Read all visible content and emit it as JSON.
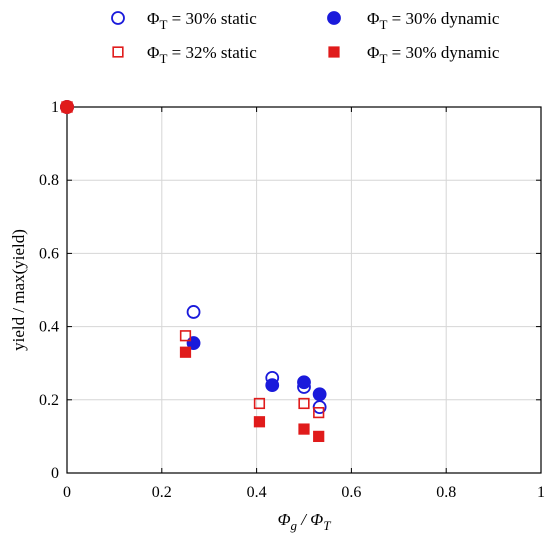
{
  "chart_data": {
    "type": "scatter",
    "xlabel": {
      "main": "Φ",
      "sub1": "g",
      "mid": " / Φ",
      "sub2": "T"
    },
    "ylabel": "yield / max(yield)",
    "xlim": [
      0,
      1
    ],
    "ylim": [
      0,
      1
    ],
    "xticks": [
      0,
      0.2,
      0.4,
      0.6,
      0.8,
      1
    ],
    "yticks": [
      0,
      0.2,
      0.4,
      0.6,
      0.8,
      1
    ],
    "xtick_labels": [
      "0",
      "0.2",
      "0.4",
      "0.6",
      "0.8",
      "1"
    ],
    "ytick_labels": [
      "0",
      "0.2",
      "0.4",
      "0.6",
      "0.8",
      "1"
    ],
    "grid": true,
    "legend_position": "top, outside plot, two columns",
    "series": [
      {
        "label": {
          "phi": "Φ",
          "sub": "T",
          "rest": " = 30% static"
        },
        "marker": "circle",
        "filled": false,
        "color": "#1a1adb",
        "points": [
          [
            0,
            1
          ],
          [
            0.267,
            0.44
          ],
          [
            0.433,
            0.26
          ],
          [
            0.5,
            0.235
          ],
          [
            0.533,
            0.18
          ]
        ]
      },
      {
        "label": {
          "phi": "Φ",
          "sub": "T",
          "rest": " = 30% dynamic"
        },
        "marker": "circle",
        "filled": true,
        "color": "#1a1adb",
        "points": [
          [
            0,
            1
          ],
          [
            0.267,
            0.355
          ],
          [
            0.433,
            0.24
          ],
          [
            0.5,
            0.248
          ],
          [
            0.533,
            0.215
          ]
        ]
      },
      {
        "label": {
          "phi": "Φ",
          "sub": "T",
          "rest": " = 32% static"
        },
        "marker": "square",
        "filled": false,
        "color": "#e01b1b",
        "points": [
          [
            0,
            1
          ],
          [
            0.25,
            0.375
          ],
          [
            0.406,
            0.19
          ],
          [
            0.5,
            0.19
          ],
          [
            0.531,
            0.165
          ]
        ]
      },
      {
        "label": {
          "phi": "Φ",
          "sub": "T",
          "rest": " = 30% dynamic"
        },
        "marker": "square",
        "filled": true,
        "color": "#e01b1b",
        "points": [
          [
            0,
            1
          ],
          [
            0.25,
            0.33
          ],
          [
            0.406,
            0.14
          ],
          [
            0.5,
            0.12
          ],
          [
            0.531,
            0.1
          ]
        ]
      }
    ],
    "origin_marker": {
      "x": 0,
      "y": 1,
      "color": "#e01b1b"
    }
  }
}
